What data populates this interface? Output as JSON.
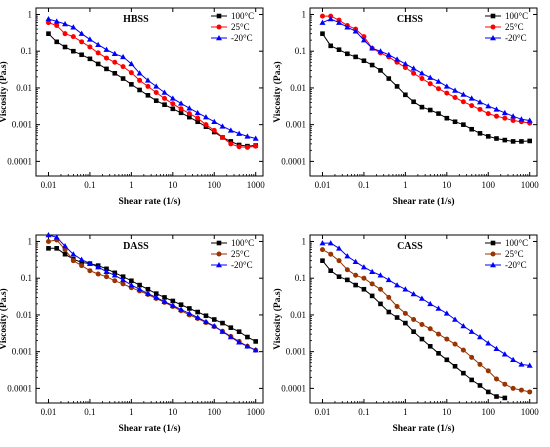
{
  "figure": {
    "colors": {
      "axis": "#000000"
    }
  },
  "chart_data": [
    {
      "type": "line",
      "title": "HBSS",
      "xlabel": "Shear rate (1/s)",
      "ylabel": "Viscosity (Pa.s)",
      "xscale": "log",
      "yscale": "log",
      "xlim": [
        0.005,
        1500
      ],
      "ylim": [
        4e-05,
        1.5
      ],
      "xticks": [
        "0.01",
        "0.1",
        "1",
        "10",
        "100",
        "1000"
      ],
      "yticks": [
        "0.0001",
        "0.001",
        "0.01",
        "0.1",
        "1"
      ],
      "legend_position": "top-right",
      "series": [
        {
          "name": "100°C",
          "color": "#000000",
          "marker": "square",
          "x": [
            0.01,
            0.0158,
            0.0251,
            0.0398,
            0.0631,
            0.1,
            0.158,
            0.251,
            0.398,
            0.631,
            1,
            1.58,
            2.51,
            3.98,
            6.31,
            10,
            15.8,
            25.1,
            39.8,
            63.1,
            100,
            158,
            251,
            398,
            631,
            1000
          ],
          "y": [
            0.3,
            0.18,
            0.13,
            0.1,
            0.08,
            0.062,
            0.045,
            0.033,
            0.025,
            0.018,
            0.0125,
            0.0088,
            0.0063,
            0.0045,
            0.0035,
            0.0027,
            0.0021,
            0.0016,
            0.0012,
            0.00088,
            0.00063,
            0.00045,
            0.00035,
            0.00028,
            0.00026,
            0.00027
          ]
        },
        {
          "name": "25°C",
          "color": "#ff0000",
          "marker": "circle",
          "x": [
            0.01,
            0.0158,
            0.0251,
            0.0398,
            0.0631,
            0.1,
            0.158,
            0.251,
            0.398,
            0.631,
            1,
            1.58,
            2.51,
            3.98,
            6.31,
            10,
            15.8,
            25.1,
            39.8,
            63.1,
            100,
            158,
            251,
            398,
            631,
            1000
          ],
          "y": [
            0.6,
            0.5,
            0.3,
            0.25,
            0.18,
            0.13,
            0.09,
            0.065,
            0.05,
            0.038,
            0.026,
            0.016,
            0.011,
            0.0075,
            0.0052,
            0.0037,
            0.0027,
            0.002,
            0.0015,
            0.001,
            0.0007,
            0.00045,
            0.0003,
            0.00025,
            0.00024,
            0.00026
          ]
        },
        {
          "name": "-20°C",
          "color": "#0000ff",
          "marker": "triangle",
          "x": [
            0.01,
            0.0158,
            0.0251,
            0.0398,
            0.0631,
            0.1,
            0.158,
            0.251,
            0.398,
            0.631,
            1,
            1.58,
            2.51,
            3.98,
            6.31,
            10,
            15.8,
            25.1,
            39.8,
            63.1,
            100,
            158,
            251,
            398,
            631,
            1000
          ],
          "y": [
            0.75,
            0.65,
            0.55,
            0.45,
            0.3,
            0.21,
            0.15,
            0.11,
            0.085,
            0.07,
            0.045,
            0.025,
            0.016,
            0.011,
            0.0075,
            0.0052,
            0.0038,
            0.0028,
            0.0021,
            0.0016,
            0.0012,
            0.0009,
            0.0007,
            0.00057,
            0.00048,
            0.00042
          ]
        }
      ]
    },
    {
      "type": "line",
      "title": "CHSS",
      "xlabel": "Shear rate (1/s)",
      "ylabel": "Viscosity (Pa.s)",
      "xscale": "log",
      "yscale": "log",
      "xlim": [
        0.005,
        1500
      ],
      "ylim": [
        4e-05,
        1.5
      ],
      "xticks": [
        "0.01",
        "0.1",
        "1",
        "10",
        "100",
        "1000"
      ],
      "yticks": [
        "0.0001",
        "0.001",
        "0.01",
        "0.1",
        "1"
      ],
      "legend_position": "top-right",
      "series": [
        {
          "name": "100°C",
          "color": "#000000",
          "marker": "square",
          "x": [
            0.01,
            0.0158,
            0.0251,
            0.0398,
            0.0631,
            0.1,
            0.158,
            0.251,
            0.398,
            0.631,
            1,
            1.58,
            2.51,
            3.98,
            6.31,
            10,
            15.8,
            25.1,
            39.8,
            63.1,
            100,
            158,
            251,
            398,
            631,
            1000
          ],
          "y": [
            0.3,
            0.14,
            0.11,
            0.085,
            0.07,
            0.055,
            0.042,
            0.03,
            0.018,
            0.011,
            0.0065,
            0.0042,
            0.003,
            0.0025,
            0.002,
            0.0015,
            0.0012,
            0.001,
            0.00075,
            0.00058,
            0.00048,
            0.00042,
            0.00038,
            0.00035,
            0.00035,
            0.00036
          ]
        },
        {
          "name": "25°C",
          "color": "#ff0000",
          "marker": "circle",
          "x": [
            0.01,
            0.0158,
            0.0251,
            0.0398,
            0.0631,
            0.1,
            0.158,
            0.251,
            0.398,
            0.631,
            1,
            1.58,
            2.51,
            3.98,
            6.31,
            10,
            15.8,
            25.1,
            39.8,
            63.1,
            100,
            158,
            251,
            398,
            631,
            1000
          ],
          "y": [
            0.9,
            0.9,
            0.7,
            0.5,
            0.4,
            0.25,
            0.12,
            0.09,
            0.07,
            0.05,
            0.036,
            0.025,
            0.018,
            0.013,
            0.0095,
            0.0072,
            0.0055,
            0.0042,
            0.0033,
            0.0026,
            0.002,
            0.0017,
            0.0015,
            0.0013,
            0.0012,
            0.0011
          ]
        },
        {
          "name": "-20°C",
          "color": "#0000ff",
          "marker": "triangle",
          "x": [
            0.01,
            0.0158,
            0.0251,
            0.0398,
            0.0631,
            0.1,
            0.158,
            0.251,
            0.398,
            0.631,
            1,
            1.58,
            2.51,
            3.98,
            6.31,
            10,
            15.8,
            25.1,
            39.8,
            63.1,
            100,
            158,
            251,
            398,
            631,
            1000
          ],
          "y": [
            0.6,
            0.75,
            0.6,
            0.45,
            0.35,
            0.2,
            0.12,
            0.1,
            0.08,
            0.06,
            0.045,
            0.034,
            0.025,
            0.019,
            0.015,
            0.011,
            0.0085,
            0.0066,
            0.0052,
            0.0041,
            0.0032,
            0.0026,
            0.0021,
            0.0017,
            0.0014,
            0.0013
          ]
        }
      ]
    },
    {
      "type": "line",
      "title": "DASS",
      "xlabel": "Shear rate (1/s)",
      "ylabel": "Viscosity (Pa.s)",
      "xscale": "log",
      "yscale": "log",
      "xlim": [
        0.005,
        1500
      ],
      "ylim": [
        4e-05,
        1.5
      ],
      "xticks": [
        "0.01",
        "0.1",
        "1",
        "10",
        "100",
        "1000"
      ],
      "yticks": [
        "0.0001",
        "0.001",
        "0.01",
        "0.1",
        "1"
      ],
      "legend_position": "top-right",
      "series": [
        {
          "name": "100°C",
          "color": "#000000",
          "marker": "square",
          "x": [
            0.01,
            0.0158,
            0.0251,
            0.0398,
            0.0631,
            0.1,
            0.158,
            0.251,
            0.398,
            0.631,
            1,
            1.58,
            2.51,
            3.98,
            6.31,
            10,
            15.8,
            25.1,
            39.8,
            63.1,
            100,
            158,
            251,
            398,
            631,
            1000
          ],
          "y": [
            0.65,
            0.65,
            0.45,
            0.33,
            0.27,
            0.25,
            0.22,
            0.18,
            0.14,
            0.11,
            0.085,
            0.065,
            0.05,
            0.038,
            0.03,
            0.024,
            0.019,
            0.015,
            0.012,
            0.0095,
            0.0075,
            0.006,
            0.0045,
            0.0035,
            0.0025,
            0.0019
          ]
        },
        {
          "name": "25°C",
          "color": "#993300",
          "marker": "circle",
          "x": [
            0.01,
            0.0158,
            0.0251,
            0.0398,
            0.0631,
            0.1,
            0.158,
            0.251,
            0.398,
            0.631,
            1,
            1.58,
            2.51,
            3.98,
            6.31,
            10,
            15.8,
            25.1,
            39.8,
            63.1,
            100,
            158,
            251,
            398,
            631,
            1000
          ],
          "y": [
            1.0,
            1.1,
            0.6,
            0.3,
            0.22,
            0.16,
            0.13,
            0.11,
            0.085,
            0.07,
            0.055,
            0.045,
            0.036,
            0.028,
            0.022,
            0.017,
            0.013,
            0.01,
            0.008,
            0.0062,
            0.0048,
            0.0036,
            0.0026,
            0.0019,
            0.0014,
            0.0011
          ]
        },
        {
          "name": "-20°C",
          "color": "#0000ff",
          "marker": "triangle",
          "x": [
            0.01,
            0.0158,
            0.0251,
            0.0398,
            0.0631,
            0.1,
            0.158,
            0.251,
            0.398,
            0.631,
            1,
            1.58,
            2.51,
            3.98,
            6.31,
            10,
            15.8,
            25.1,
            39.8,
            63.1,
            100,
            158,
            251,
            398,
            631,
            1000
          ],
          "y": [
            1.5,
            1.3,
            0.75,
            0.45,
            0.32,
            0.25,
            0.2,
            0.15,
            0.12,
            0.09,
            0.065,
            0.05,
            0.038,
            0.03,
            0.023,
            0.018,
            0.014,
            0.011,
            0.0085,
            0.0065,
            0.005,
            0.0035,
            0.0025,
            0.0018,
            0.0014,
            0.0011
          ]
        }
      ]
    },
    {
      "type": "line",
      "title": "CASS",
      "xlabel": "Shear rate (1/s)",
      "ylabel": "Viscosity (Pa.s)",
      "xscale": "log",
      "yscale": "log",
      "xlim": [
        0.005,
        1500
      ],
      "ylim": [
        4e-05,
        1.5
      ],
      "xticks": [
        "0.01",
        "0.1",
        "1",
        "10",
        "100",
        "1000"
      ],
      "yticks": [
        "0.0001",
        "0.001",
        "0.01",
        "0.1",
        "1"
      ],
      "legend_position": "top-right",
      "series": [
        {
          "name": "100°C",
          "color": "#000000",
          "marker": "square",
          "x": [
            0.01,
            0.0158,
            0.0251,
            0.0398,
            0.0631,
            0.1,
            0.158,
            0.251,
            0.398,
            0.631,
            1,
            1.58,
            2.51,
            3.98,
            6.31,
            10,
            15.8,
            25.1,
            39.8,
            63.1,
            100,
            158,
            251
          ],
          "y": [
            0.3,
            0.16,
            0.11,
            0.09,
            0.065,
            0.05,
            0.033,
            0.02,
            0.012,
            0.0085,
            0.006,
            0.0035,
            0.0022,
            0.0014,
            0.0009,
            0.0006,
            0.0004,
            0.00026,
            0.00017,
            0.00012,
            8e-05,
            6e-05,
            5.5e-05
          ]
        },
        {
          "name": "25°C",
          "color": "#993300",
          "marker": "circle",
          "x": [
            0.01,
            0.0158,
            0.0251,
            0.0398,
            0.0631,
            0.1,
            0.158,
            0.251,
            0.398,
            0.631,
            1,
            1.58,
            2.51,
            3.98,
            6.31,
            10,
            15.8,
            25.1,
            39.8,
            63.1,
            100,
            158,
            251,
            398,
            631,
            1000
          ],
          "y": [
            0.6,
            0.45,
            0.3,
            0.17,
            0.12,
            0.1,
            0.07,
            0.05,
            0.03,
            0.017,
            0.011,
            0.0075,
            0.0055,
            0.0042,
            0.003,
            0.0022,
            0.0016,
            0.0011,
            0.0007,
            0.00045,
            0.0003,
            0.00018,
            0.00013,
            0.0001,
            9e-05,
            8e-05
          ]
        },
        {
          "name": "-20°C",
          "color": "#0000ff",
          "marker": "triangle",
          "x": [
            0.01,
            0.0158,
            0.0251,
            0.0398,
            0.0631,
            0.1,
            0.158,
            0.251,
            0.398,
            0.631,
            1,
            1.58,
            2.51,
            3.98,
            6.31,
            10,
            15.8,
            25.1,
            39.8,
            63.1,
            100,
            158,
            251,
            398,
            631,
            1000
          ],
          "y": [
            0.9,
            0.9,
            0.65,
            0.4,
            0.28,
            0.2,
            0.15,
            0.12,
            0.09,
            0.065,
            0.05,
            0.037,
            0.028,
            0.02,
            0.015,
            0.011,
            0.0075,
            0.005,
            0.0035,
            0.0025,
            0.0017,
            0.0012,
            0.00085,
            0.0006,
            0.00045,
            0.00042
          ]
        }
      ]
    }
  ]
}
